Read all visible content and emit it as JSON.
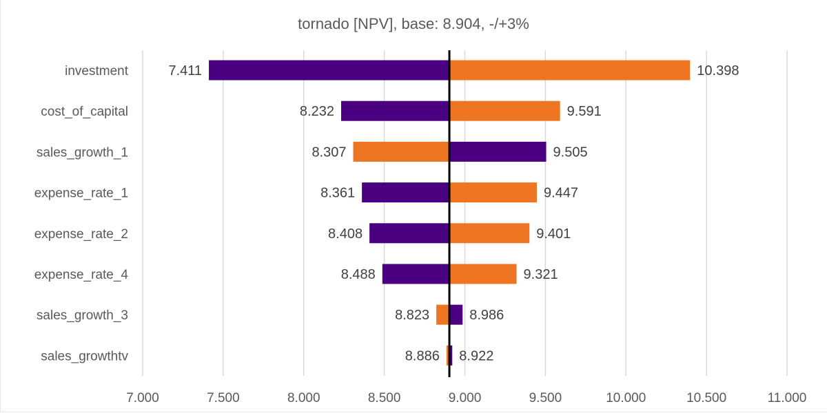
{
  "chart_data": {
    "type": "bar",
    "orientation": "horizontal",
    "subtype": "tornado",
    "title": "tornado [NPV], base: 8.904, -/+3%",
    "base": 8.904,
    "xlabel": "",
    "ylabel": "",
    "xlim": [
      7.0,
      11.0
    ],
    "x_ticks": [
      7.0,
      7.5,
      8.0,
      8.5,
      9.0,
      9.5,
      10.0,
      10.5,
      11.0
    ],
    "x_tick_labels": [
      "7.000",
      "7.500",
      "8.000",
      "8.500",
      "9.000",
      "9.500",
      "10.000",
      "10.500",
      "11.000"
    ],
    "grid": "vertical",
    "legend": "none",
    "series": [
      {
        "name": "-3%",
        "color": "#4B0082"
      },
      {
        "name": "+3%",
        "color": "#EE7623"
      }
    ],
    "categories": [
      "investment",
      "cost_of_capital",
      "sales_growth_1",
      "expense_rate_1",
      "expense_rate_2",
      "expense_rate_4",
      "sales_growth_3",
      "sales_growthtv"
    ],
    "rows": [
      {
        "label": "investment",
        "minus": 7.411,
        "plus": 10.398,
        "low_label": "7.411",
        "high_label": "10.398"
      },
      {
        "label": "cost_of_capital",
        "minus": 8.232,
        "plus": 9.591,
        "low_label": "8.232",
        "high_label": "9.591"
      },
      {
        "label": "sales_growth_1",
        "minus": 9.505,
        "plus": 8.307,
        "low_label": "8.307",
        "high_label": "9.505"
      },
      {
        "label": "expense_rate_1",
        "minus": 8.361,
        "plus": 9.447,
        "low_label": "8.361",
        "high_label": "9.447"
      },
      {
        "label": "expense_rate_2",
        "minus": 8.408,
        "plus": 9.401,
        "low_label": "8.408",
        "high_label": "9.401"
      },
      {
        "label": "expense_rate_4",
        "minus": 8.488,
        "plus": 9.321,
        "low_label": "8.488",
        "high_label": "9.321"
      },
      {
        "label": "sales_growth_3",
        "minus": 8.986,
        "plus": 8.823,
        "low_label": "8.823",
        "high_label": "8.986"
      },
      {
        "label": "sales_growthtv",
        "minus": 8.922,
        "plus": 8.886,
        "low_label": "8.886",
        "high_label": "8.922"
      }
    ]
  }
}
